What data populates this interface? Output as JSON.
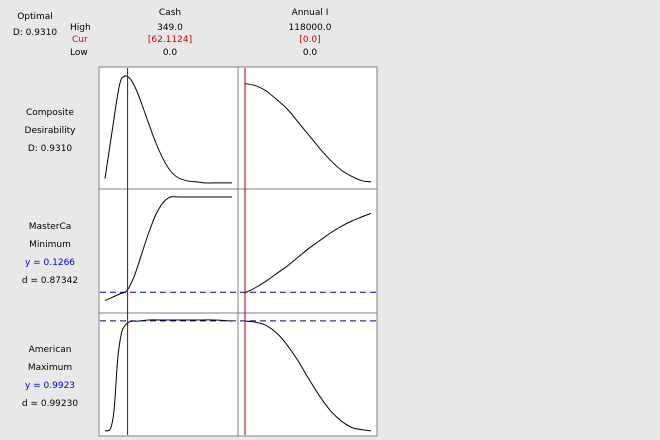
{
  "header": {
    "optimal_label": "Optimal",
    "desirability": "D: 0.9310",
    "high_label": "High",
    "cur_label": "Cur",
    "low_label": "Low"
  },
  "factors": [
    {
      "name": "Cash",
      "high": "349.0",
      "cur": "[62.1124]",
      "low": "0.0"
    },
    {
      "name": "Annual I",
      "high": "118000.0",
      "cur": "[0.0]",
      "low": "0.0"
    }
  ],
  "rows": [
    {
      "line1": "Composite",
      "line2": "Desirability",
      "line3": "D: 0.9310",
      "line4": ""
    },
    {
      "line1": "MasterCa",
      "line2": "Minimum",
      "line3": "y = 0.1266",
      "line4": "d = 0.87342"
    },
    {
      "line1": "American",
      "line2": "Maximum",
      "line3": "y = 0.9923",
      "line4": "d = 0.99230"
    }
  ],
  "colors": {
    "background": "#e8e8e8",
    "plot_bg": "#ffffff",
    "curve": "#000000",
    "current_line": "#8b0000",
    "cur_text": "#cc0000",
    "prediction_text": "#0000cc",
    "target_dash": "#00008b"
  },
  "chart_data": {
    "type": "line",
    "title": "",
    "panels": [
      {
        "row": 0,
        "factor": "Cash",
        "xlim": [
          0,
          349
        ],
        "ylim": [
          0,
          1
        ],
        "x": [
          0,
          20,
          40,
          55,
          70,
          85,
          100,
          120,
          140,
          160,
          180,
          200,
          225,
          250,
          275,
          300,
          349
        ],
        "y": [
          0.05,
          0.5,
          0.92,
          1.0,
          0.97,
          0.88,
          0.75,
          0.56,
          0.38,
          0.23,
          0.12,
          0.06,
          0.03,
          0.02,
          0.01,
          0.01,
          0.01
        ]
      },
      {
        "row": 0,
        "factor": "Annual I",
        "xlim": [
          0,
          118000
        ],
        "ylim": [
          0,
          1
        ],
        "x": [
          0,
          10000,
          20000,
          30000,
          40000,
          50000,
          60000,
          70000,
          80000,
          90000,
          100000,
          110000,
          118000
        ],
        "y": [
          0.93,
          0.91,
          0.86,
          0.78,
          0.69,
          0.57,
          0.45,
          0.33,
          0.22,
          0.13,
          0.07,
          0.03,
          0.02
        ]
      },
      {
        "row": 1,
        "factor": "Cash",
        "xlim": [
          0,
          349
        ],
        "ylim": [
          0,
          1
        ],
        "x": [
          0,
          20,
          40,
          60,
          80,
          100,
          120,
          140,
          160,
          180,
          200,
          225,
          250,
          275,
          300,
          349
        ],
        "y": [
          0.05,
          0.08,
          0.11,
          0.14,
          0.27,
          0.47,
          0.67,
          0.84,
          0.95,
          1.0,
          1.0,
          1.0,
          1.0,
          1.0,
          1.0,
          1.0
        ]
      },
      {
        "row": 1,
        "factor": "Annual I",
        "xlim": [
          0,
          118000
        ],
        "ylim": [
          0,
          1
        ],
        "x": [
          0,
          10000,
          20000,
          30000,
          40000,
          50000,
          60000,
          70000,
          80000,
          90000,
          100000,
          110000,
          118000
        ],
        "y": [
          0.12,
          0.17,
          0.23,
          0.3,
          0.37,
          0.45,
          0.53,
          0.6,
          0.67,
          0.73,
          0.78,
          0.82,
          0.85
        ]
      },
      {
        "row": 2,
        "factor": "Cash",
        "xlim": [
          0,
          349
        ],
        "ylim": [
          0,
          1
        ],
        "x": [
          0,
          15,
          25,
          35,
          45,
          55,
          65,
          75,
          90,
          120,
          160,
          200,
          250,
          300,
          349
        ],
        "y": [
          0.01,
          0.03,
          0.2,
          0.65,
          0.88,
          0.95,
          0.98,
          0.99,
          0.99,
          1.0,
          1.0,
          1.0,
          1.0,
          1.0,
          0.99
        ]
      },
      {
        "row": 2,
        "factor": "Annual I",
        "xlim": [
          0,
          118000
        ],
        "ylim": [
          0,
          1
        ],
        "x": [
          0,
          10000,
          20000,
          30000,
          40000,
          50000,
          60000,
          70000,
          80000,
          90000,
          100000,
          110000,
          118000
        ],
        "y": [
          0.99,
          0.98,
          0.95,
          0.88,
          0.77,
          0.63,
          0.47,
          0.32,
          0.19,
          0.1,
          0.04,
          0.02,
          0.01
        ]
      }
    ],
    "current_settings": {
      "Cash": 62.1124,
      "Annual I": 0.0
    },
    "targets": [
      {
        "row": 1,
        "y": 0.1266
      },
      {
        "row": 2,
        "y": 0.9923
      }
    ]
  }
}
